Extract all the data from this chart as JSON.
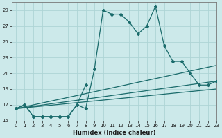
{
  "xlabel": "Humidex (Indice chaleur)",
  "background_color": "#cce9ea",
  "grid_color": "#aed4d5",
  "line_color": "#1a6b6b",
  "x_main": [
    0,
    1,
    2,
    3,
    4,
    5,
    6,
    7,
    8,
    9,
    10,
    11,
    12,
    13,
    14,
    15,
    16,
    17,
    18,
    19,
    20,
    21,
    22,
    23
  ],
  "y_main": [
    16.5,
    17.0,
    15.5,
    15.5,
    15.5,
    15.5,
    15.5,
    17.0,
    16.5,
    21.5,
    29.0,
    28.5,
    28.5,
    27.5,
    26.0,
    27.0,
    29.5,
    24.5,
    22.5,
    22.5,
    21.0,
    19.5,
    19.5,
    20.0
  ],
  "x_sub": [
    0,
    1,
    2,
    3,
    4,
    5,
    6,
    7,
    8
  ],
  "y_sub": [
    16.5,
    17.0,
    15.5,
    15.5,
    15.5,
    15.5,
    15.5,
    17.0,
    19.5
  ],
  "straight_lines": [
    {
      "x0": 0,
      "y0": 16.5,
      "x1": 23,
      "y1": 22.0
    },
    {
      "x0": 0,
      "y0": 16.5,
      "x1": 23,
      "y1": 20.0
    },
    {
      "x0": 0,
      "y0": 16.5,
      "x1": 23,
      "y1": 19.0
    }
  ],
  "ylim": [
    15,
    30
  ],
  "xlim": [
    -0.5,
    23
  ],
  "yticks": [
    15,
    17,
    19,
    21,
    23,
    25,
    27,
    29
  ],
  "xticks": [
    0,
    1,
    2,
    3,
    4,
    5,
    6,
    7,
    8,
    9,
    10,
    11,
    12,
    13,
    14,
    15,
    16,
    17,
    18,
    19,
    20,
    21,
    22,
    23
  ],
  "tick_fontsize": 5,
  "xlabel_fontsize": 6
}
